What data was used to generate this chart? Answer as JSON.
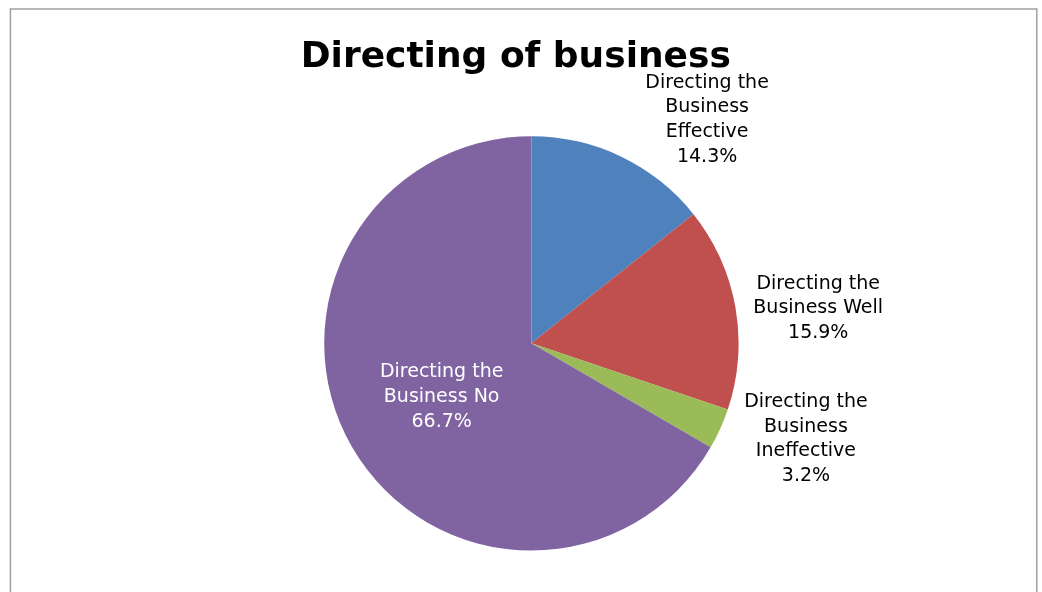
{
  "chart_data": {
    "type": "pie",
    "title": "Directing of business",
    "categories": [
      "Directing the Business Effective",
      "Directing the Business Well",
      "Directing the Business Ineffective",
      "Directing the Business No"
    ],
    "values": [
      14.3,
      15.9,
      3.2,
      66.7
    ],
    "value_labels": [
      "14.3%",
      "15.9%",
      "3.2%",
      "66.7%"
    ],
    "colors": [
      "#4f81bd",
      "#c0504d",
      "#9bbb59",
      "#8064a2"
    ],
    "legend": false
  }
}
